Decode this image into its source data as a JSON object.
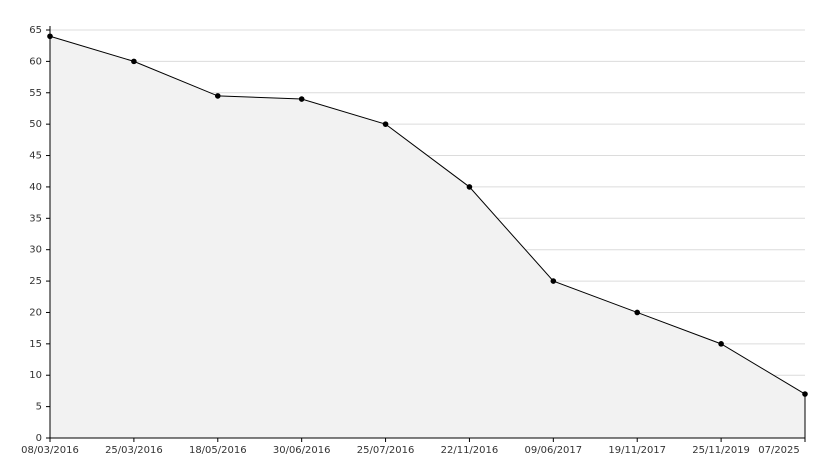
{
  "chart_data": {
    "type": "area",
    "categories": [
      "08/03/2016",
      "25/03/2016",
      "18/05/2016",
      "30/06/2016",
      "25/07/2016",
      "22/11/2016",
      "09/06/2017",
      "19/11/2017",
      "25/11/2019",
      "07/2025"
    ],
    "values": [
      64,
      60,
      54.5,
      54,
      50,
      40,
      25,
      20,
      15,
      7
    ],
    "color": "#000000",
    "fill": "#f2f2f2",
    "ylim": [
      0,
      65
    ],
    "yticks": [
      0,
      5,
      10,
      15,
      20,
      25,
      30,
      35,
      40,
      45,
      50,
      55,
      60,
      65
    ],
    "grid": true
  }
}
